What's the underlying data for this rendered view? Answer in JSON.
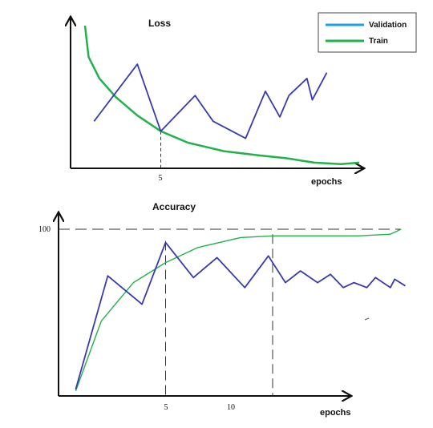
{
  "colors": {
    "validation": "#3a3ab0",
    "train": "#22b24c",
    "legend_validation": "#1ea0e6",
    "axis": "#111111",
    "guide": "#333333"
  },
  "legend": {
    "items": [
      {
        "label": "Validation"
      },
      {
        "label": "Train"
      }
    ]
  },
  "chart_data": [
    {
      "type": "line",
      "title": "Loss",
      "xlabel": "epochs",
      "ylabel": "",
      "xlim": [
        0,
        16
      ],
      "ylim": [
        0,
        10
      ],
      "xticks": [
        {
          "value": 5,
          "label": "5"
        }
      ],
      "yticks": [],
      "grid": false,
      "legend": "top-right",
      "series": [
        {
          "name": "Validation",
          "color": "#3a3ab0",
          "x": [
            1.3,
            3.7,
            5,
            6.9,
            7.9,
            9.7,
            10.8,
            11.6,
            12.1,
            13.1,
            13.4,
            14.2
          ],
          "y": [
            3.3,
            7.3,
            2.6,
            5.1,
            3.3,
            2.1,
            5.4,
            3.6,
            5.1,
            6.3,
            4.8,
            6.7
          ]
        },
        {
          "name": "Train",
          "color": "#22b24c",
          "x": [
            0.8,
            1.0,
            1.6,
            2.5,
            3.7,
            5.0,
            6.5,
            8.5,
            10.5,
            12.0,
            13.5,
            15.0,
            16.0
          ],
          "y": [
            10.0,
            7.8,
            6.3,
            5.0,
            3.7,
            2.6,
            1.8,
            1.2,
            0.9,
            0.7,
            0.4,
            0.3,
            0.4
          ]
        }
      ],
      "guides": [
        {
          "x": 5,
          "y": 2.6
        }
      ]
    },
    {
      "type": "line",
      "title": "Accuracy",
      "xlabel": "epochs",
      "ylabel": "",
      "xlim": [
        0,
        16
      ],
      "ylim": [
        0,
        100
      ],
      "xticks": [
        {
          "value": 5,
          "label": "5"
        },
        {
          "value": 10,
          "label": "10"
        }
      ],
      "yticks": [
        {
          "value": 100,
          "label": "100"
        }
      ],
      "grid": false,
      "series": [
        {
          "name": "Validation",
          "color": "#3a3ab0",
          "x": [
            0.8,
            2.3,
            3.9,
            5.0,
            6.3,
            7.4,
            8.7,
            9.8,
            10.6,
            11.3,
            12.1,
            12.7,
            13.3,
            13.8,
            14.4,
            14.8,
            15.5,
            15.7,
            16.2
          ],
          "y": [
            4,
            72,
            55,
            92,
            71,
            83,
            65,
            84,
            68,
            75,
            68,
            73,
            65,
            68,
            65,
            71,
            65,
            70,
            66
          ]
        },
        {
          "name": "Train",
          "color": "#22b24c",
          "x": [
            0.8,
            2.0,
            3.5,
            5.0,
            6.5,
            8.5,
            10.0,
            12.0,
            14.0,
            15.5,
            16.0
          ],
          "y": [
            3,
            45,
            68,
            80,
            89,
            95,
            96,
            96,
            96,
            97,
            100
          ]
        }
      ],
      "guides": [
        {
          "x": 5,
          "y": 93,
          "vertical_only": true
        },
        {
          "x": 10,
          "y": 97,
          "vertical_only": true
        }
      ],
      "reference_line": {
        "y": 100
      }
    }
  ]
}
